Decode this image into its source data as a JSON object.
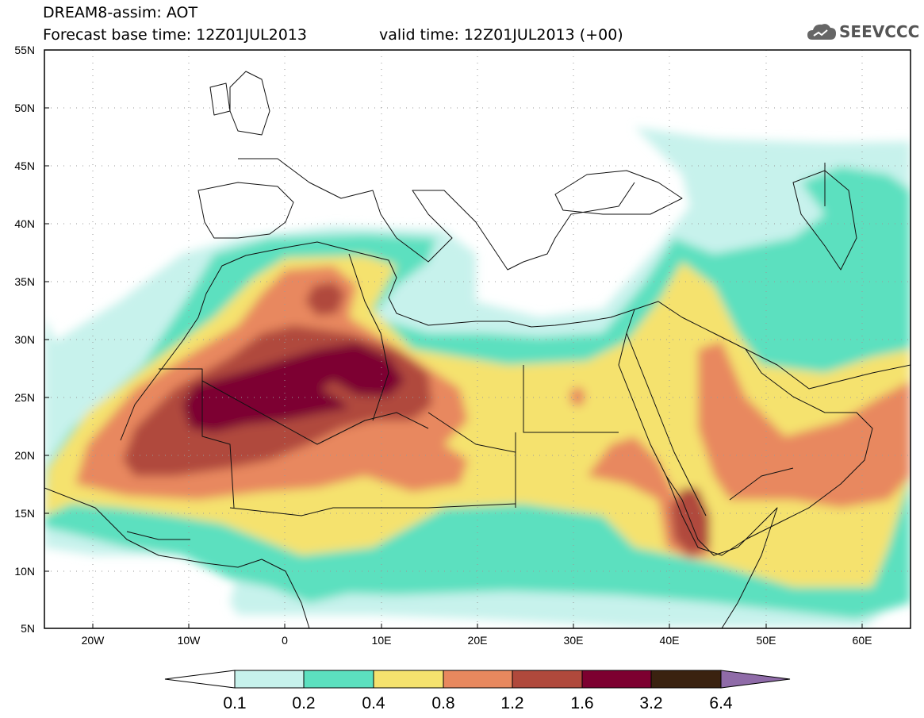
{
  "header": {
    "line1": "DREAM8-assim: AOT",
    "line2": "Forecast base time: 12Z01JUL2013",
    "line3": "valid time: 12Z01JUL2013 (+00)"
  },
  "logo": {
    "text": "SEEVCCC",
    "icon": "cloud-icon"
  },
  "map": {
    "lon_range": [
      -25,
      65
    ],
    "lat_range": [
      5,
      55
    ],
    "lat_ticks": [
      "5N",
      "10N",
      "15N",
      "20N",
      "25N",
      "30N",
      "35N",
      "40N",
      "45N",
      "50N",
      "55N"
    ],
    "lon_ticks": [
      "20W",
      "10W",
      "0",
      "10E",
      "20E",
      "30E",
      "40E",
      "50E",
      "60E"
    ]
  },
  "colorbar": {
    "labels": [
      "0.1",
      "0.2",
      "0.4",
      "0.8",
      "1.2",
      "1.6",
      "3.2",
      "6.4"
    ],
    "colors": [
      "#c7f2ec",
      "#5ce0bf",
      "#f5e26e",
      "#e8885e",
      "#b0493c",
      "#7d0030",
      "#3a2210",
      "#8f6ba8"
    ]
  }
}
